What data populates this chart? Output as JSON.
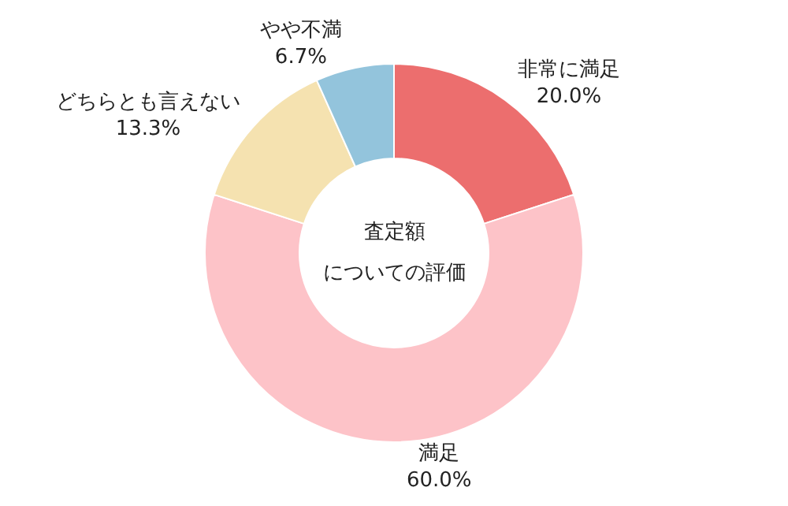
{
  "chart_data": {
    "type": "donut",
    "categories": [
      "非常に満足",
      "満足",
      "どちらとも言えない",
      "やや不満"
    ],
    "values": [
      20.0,
      60.0,
      13.3,
      6.7
    ],
    "value_labels": [
      "20.0%",
      "60.0%",
      "13.3%",
      "6.7%"
    ],
    "colors": [
      "#ec6e6e",
      "#fdc3c8",
      "#f5e2b0",
      "#93c4dc"
    ],
    "annotations": [
      "査定額",
      "についての評価"
    ],
    "legend": false
  }
}
